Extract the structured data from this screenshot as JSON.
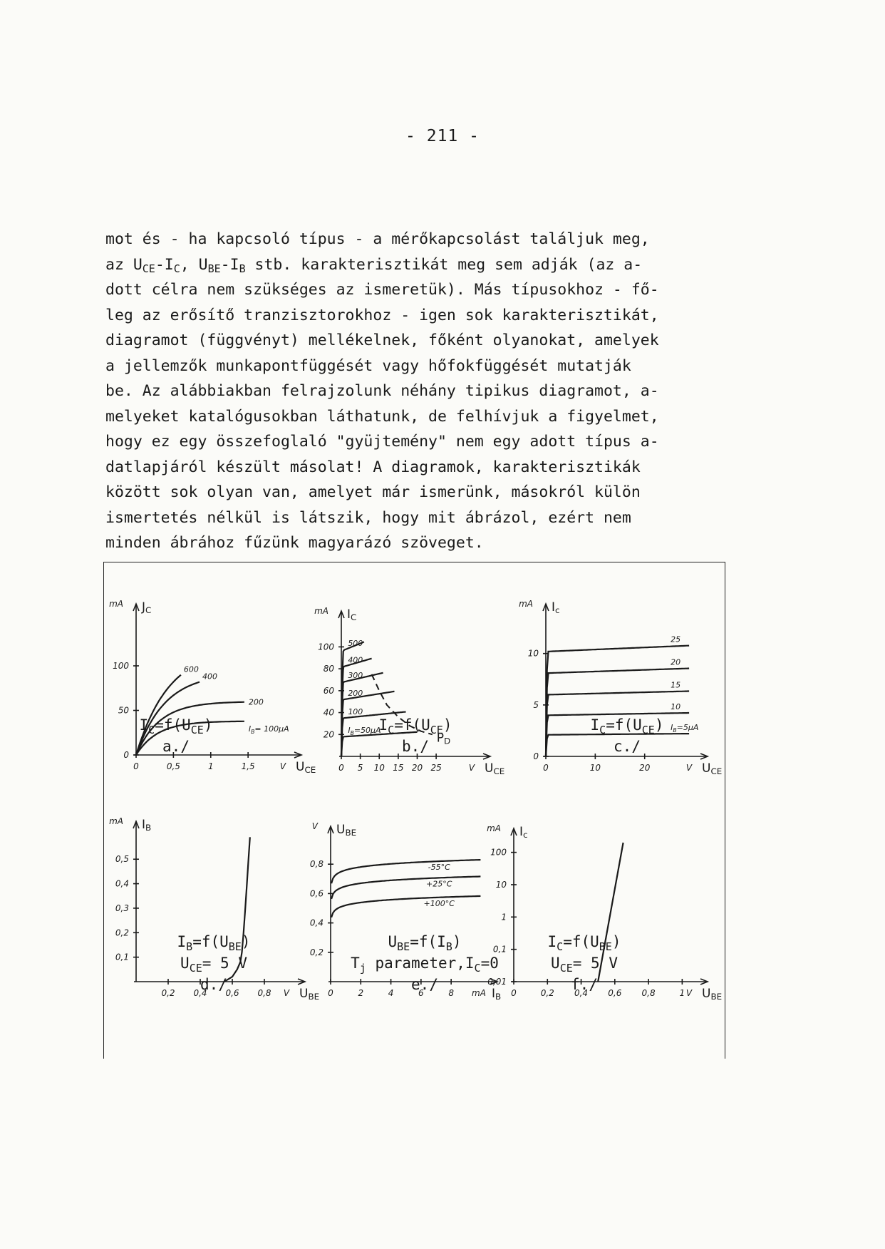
{
  "page_number": "- 211 -",
  "paragraph": [
    [
      "mot és - ha kapcsoló típus - a mérőkapcsolást találjuk meg,"
    ],
    [
      "az U",
      {
        "sub": "CE"
      },
      "-I",
      {
        "sub": "C"
      },
      ", U",
      {
        "sub": "BE"
      },
      "-I",
      {
        "sub": "B"
      },
      " stb. karakterisztikát meg sem adják (az a-"
    ],
    [
      "dott célra nem szükséges az ismeretük). Más típusokhoz - fő-"
    ],
    [
      "leg az erősítő tranzisztorokhoz - igen sok karakterisztikát,"
    ],
    [
      "diagramot (függvényt) mellékelnek, főként olyanokat, amelyek"
    ],
    [
      "a jellemzők munkapontfüggését vagy hőfokfüggését mutatják"
    ],
    [
      "be. Az alábbiakban felrajzolunk néhány tipikus diagramot, a-"
    ],
    [
      "melyeket katalógusokban láthatunk, de felhívjuk a figyelmet,"
    ],
    [
      "hogy ez egy összefoglaló \"gyüjtemény\" nem egy adott típus a-"
    ],
    [
      "datlapjáról készült másolat! A diagramok, karakterisztikák"
    ],
    [
      "között sok olyan van, amelyet már ismerünk, másokról külön"
    ],
    [
      "ismertetés nélkül is látszik, hogy mit ábrázol, ezért nem"
    ],
    [
      "minden ábrához fűzünk magyarázó szöveget."
    ]
  ],
  "chart_data": [
    {
      "type": "line",
      "id": "a",
      "y_unit": "mA",
      "y_name": "J",
      "y_sub": "C",
      "x_unit": "V",
      "x_name": "U",
      "x_sub": "CE",
      "xlim": [
        0,
        2.1
      ],
      "ylim": [
        0,
        160
      ],
      "x_ticks": [
        0,
        0.5,
        1,
        1.5
      ],
      "x_tick_labels": [
        "0",
        "0,5",
        "1",
        "1,5"
      ],
      "y_ticks": [
        0,
        50,
        100
      ],
      "y_tick_labels": [
        "0",
        "50",
        "100"
      ],
      "series": [
        {
          "name": "I_B=100µA",
          "label": "I",
          "label_sub": "B",
          "label_rest": "= 100µA",
          "sat": 38,
          "k": 3.5,
          "x_end": 1.45
        },
        {
          "name": "200",
          "label": "200",
          "sat": 60,
          "k": 3.2,
          "x_end": 1.45
        },
        {
          "name": "400",
          "label": "400",
          "sat": 92,
          "k": 2.6,
          "x_end": 0.85
        },
        {
          "name": "600",
          "label": "600",
          "sat": 120,
          "k": 2.3,
          "x_end": 0.6
        }
      ],
      "caption": [
        [
          "I",
          {
            "sub": "C"
          },
          "=f(U",
          {
            "sub": "CE"
          },
          ")"
        ],
        [
          "a./"
        ]
      ]
    },
    {
      "type": "line",
      "id": "b",
      "y_unit": "mA",
      "y_name": "I",
      "y_sub": "C",
      "x_unit": "V",
      "x_name": "U",
      "x_sub": "CE",
      "xlim": [
        0,
        37
      ],
      "ylim": [
        0,
        125
      ],
      "x_ticks": [
        0,
        5,
        10,
        15,
        20,
        25
      ],
      "x_tick_labels": [
        "0",
        "5",
        "10",
        "15",
        "20",
        "25"
      ],
      "y_ticks": [
        20,
        40,
        60,
        80,
        100
      ],
      "y_tick_labels": [
        "20",
        "40",
        "60",
        "80",
        "100"
      ],
      "series": [
        {
          "name": "I_B=50µA",
          "label": "I",
          "label_sub": "B",
          "label_rest": "=50µA",
          "sat": 18,
          "slope": 0.22,
          "x_end": 20
        },
        {
          "name": "100",
          "label": "100",
          "sat": 35,
          "slope": 0.35,
          "x_end": 17
        },
        {
          "name": "200",
          "label": "200",
          "sat": 52,
          "slope": 0.55,
          "x_end": 14
        },
        {
          "name": "300",
          "label": "300",
          "sat": 68,
          "slope": 0.8,
          "x_end": 11
        },
        {
          "name": "400",
          "label": "400",
          "sat": 82,
          "slope": 1.0,
          "x_end": 8
        },
        {
          "name": "500",
          "label": "500",
          "sat": 97,
          "slope": 1.4,
          "x_end": 6
        }
      ],
      "power_hyperbola": {
        "label": "P",
        "label_sub": "D",
        "x": [
          8,
          10,
          12,
          15,
          18,
          21,
          24
        ],
        "y": [
          75,
          60,
          47,
          36,
          28,
          23,
          20
        ]
      },
      "caption": [
        [
          "I",
          {
            "sub": "C"
          },
          "=f(U",
          {
            "sub": "CE"
          },
          ")"
        ],
        [
          "b./"
        ]
      ]
    },
    {
      "type": "line",
      "id": "c",
      "y_unit": "mA",
      "y_name": "I",
      "y_sub": "c",
      "x_unit": "V",
      "x_name": "U",
      "x_sub": "CE",
      "xlim": [
        0,
        31
      ],
      "ylim": [
        0,
        14
      ],
      "x_ticks": [
        0,
        10,
        20
      ],
      "x_tick_labels": [
        "0",
        "10",
        "20"
      ],
      "y_ticks": [
        0,
        5,
        10
      ],
      "y_tick_labels": [
        "0",
        "5",
        "10"
      ],
      "series": [
        {
          "name": "I_B=5µA",
          "label": "I",
          "label_sub": "B",
          "label_rest": "=5µA",
          "sat": 2.1,
          "slope": 0.004,
          "x_end": 29
        },
        {
          "name": "10",
          "label": "10",
          "sat": 4,
          "slope": 0.008,
          "x_end": 29
        },
        {
          "name": "15",
          "label": "15",
          "sat": 6,
          "slope": 0.012,
          "x_end": 29
        },
        {
          "name": "20",
          "label": "20",
          "sat": 8.1,
          "slope": 0.016,
          "x_end": 29
        },
        {
          "name": "25",
          "label": "25",
          "sat": 10.2,
          "slope": 0.02,
          "x_end": 29
        }
      ],
      "caption": [
        [
          "I",
          {
            "sub": "C"
          },
          "=f(U",
          {
            "sub": "CE"
          },
          ")"
        ],
        [
          "c./"
        ]
      ]
    },
    {
      "type": "line",
      "id": "d",
      "y_unit": "mA",
      "y_name": "I",
      "y_sub": "B",
      "x_unit": "V",
      "x_name": "U",
      "x_sub": "BE",
      "xlim": [
        0,
        1.0
      ],
      "ylim": [
        0,
        0.62
      ],
      "x_ticks": [
        0.2,
        0.4,
        0.6,
        0.8
      ],
      "x_tick_labels": [
        "0,2",
        "0,4",
        "0,6",
        "0,8"
      ],
      "y_ticks": [
        0.1,
        0.2,
        0.3,
        0.4,
        0.5
      ],
      "y_tick_labels": [
        "0,1",
        "0,2",
        "0,3",
        "0,4",
        "0,5"
      ],
      "series": [
        {
          "name": "I_B",
          "x": [
            0.55,
            0.6,
            0.63,
            0.65,
            0.66,
            0.67,
            0.68,
            0.69,
            0.7,
            0.71
          ],
          "y": [
            0,
            0.02,
            0.05,
            0.08,
            0.12,
            0.2,
            0.29,
            0.39,
            0.49,
            0.59
          ]
        }
      ],
      "caption": [
        [
          "I",
          {
            "sub": "B"
          },
          "=f(U",
          {
            "sub": "BE"
          },
          ")"
        ],
        [
          "U",
          {
            "sub": "CE"
          },
          "= 5 V"
        ],
        [
          "d./"
        ]
      ]
    },
    {
      "type": "line",
      "id": "e",
      "y_unit": "V",
      "y_name": "U",
      "y_sub": "BE",
      "x_unit": "mA",
      "x_name": "I",
      "x_sub": "B",
      "xlim": [
        0,
        10.5
      ],
      "ylim": [
        0,
        1.0
      ],
      "x_ticks": [
        0,
        2,
        4,
        6,
        8
      ],
      "x_tick_labels": [
        "0",
        "2",
        "4",
        "6",
        "8"
      ],
      "y_ticks": [
        0.2,
        0.4,
        0.6,
        0.8
      ],
      "y_tick_labels": [
        "0,2",
        "0,4",
        "0,6",
        "0,8"
      ],
      "series": [
        {
          "name": "-55°C",
          "label": "-55°C",
          "a": 0.78,
          "b": 0.2
        },
        {
          "name": "+25°C",
          "label": "+25°C",
          "a": 0.67,
          "b": 0.19
        },
        {
          "name": "+100°C",
          "label": "+100°C",
          "a": 0.54,
          "b": 0.18
        }
      ],
      "caption": [
        [
          "U",
          {
            "sub": "BE"
          },
          "=f(I",
          {
            "sub": "B"
          },
          ")"
        ],
        [
          "T",
          {
            "sub": "j"
          },
          " parameter,I",
          {
            "sub": "C"
          },
          "=0"
        ],
        [
          "e./"
        ]
      ]
    },
    {
      "type": "line",
      "id": "f",
      "y_unit": "mA",
      "y_name": "I",
      "y_sub": "c",
      "x_unit": "V",
      "x_name": "U",
      "x_sub": "BE",
      "xlim": [
        0,
        1.1
      ],
      "ylim": [
        0.01,
        300
      ],
      "y_scale": "log",
      "x_ticks": [
        0,
        0.2,
        0.4,
        0.6,
        0.8,
        1
      ],
      "x_tick_labels": [
        "0",
        "0,2",
        "0,4",
        "0,6",
        "0,8",
        "1"
      ],
      "y_ticks": [
        0.01,
        0.1,
        1,
        10,
        100
      ],
      "y_tick_labels": [
        "0,01",
        "0,1",
        "1",
        "10",
        "100"
      ],
      "series": [
        {
          "name": "I_C",
          "x": [
            0.5,
            0.65
          ],
          "y": [
            0.01,
            200
          ]
        }
      ],
      "caption": [
        [
          "I",
          {
            "sub": "C"
          },
          "=f(U",
          {
            "sub": "BE"
          },
          ")"
        ],
        [
          "U",
          {
            "sub": "CE"
          },
          "= 5 V"
        ],
        [
          "f./"
        ]
      ]
    }
  ]
}
